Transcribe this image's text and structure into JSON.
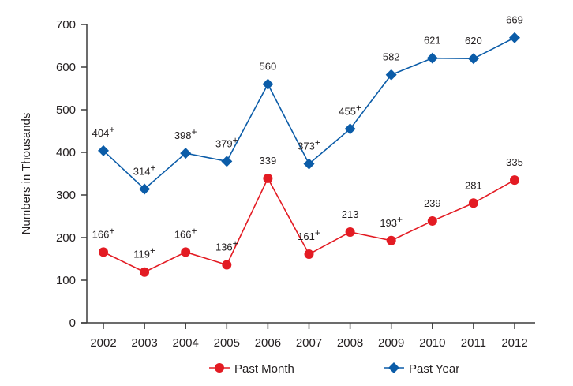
{
  "chart_data": {
    "type": "line",
    "title": "",
    "xlabel": "",
    "ylabel": "Numbers in Thousands",
    "ylim": [
      0,
      700
    ],
    "yticks": [
      0,
      100,
      200,
      300,
      400,
      500,
      600,
      700
    ],
    "categories": [
      "2002",
      "2003",
      "2004",
      "2005",
      "2006",
      "2007",
      "2008",
      "2009",
      "2010",
      "2011",
      "2012"
    ],
    "grid": false,
    "legend_position": "bottom-center",
    "series": [
      {
        "name": "Past Month",
        "color": "#e31b23",
        "marker": "circle",
        "values": [
          166,
          119,
          166,
          136,
          339,
          161,
          213,
          193,
          239,
          281,
          335
        ],
        "labels": [
          "166",
          "119",
          "166",
          "136",
          "339",
          "161",
          "213",
          "193",
          "239",
          "281",
          "335"
        ],
        "plus_flags": [
          true,
          true,
          true,
          true,
          false,
          true,
          false,
          true,
          false,
          false,
          false
        ]
      },
      {
        "name": "Past Year",
        "color": "#0b5ca8",
        "marker": "diamond",
        "values": [
          404,
          314,
          398,
          379,
          560,
          373,
          455,
          582,
          621,
          620,
          669
        ],
        "labels": [
          "404",
          "314",
          "398",
          "379",
          "560",
          "373",
          "455",
          "582",
          "621",
          "620",
          "669"
        ],
        "plus_flags": [
          true,
          true,
          true,
          true,
          false,
          true,
          true,
          false,
          false,
          false,
          false
        ]
      }
    ],
    "annotation_superscript": "+"
  }
}
